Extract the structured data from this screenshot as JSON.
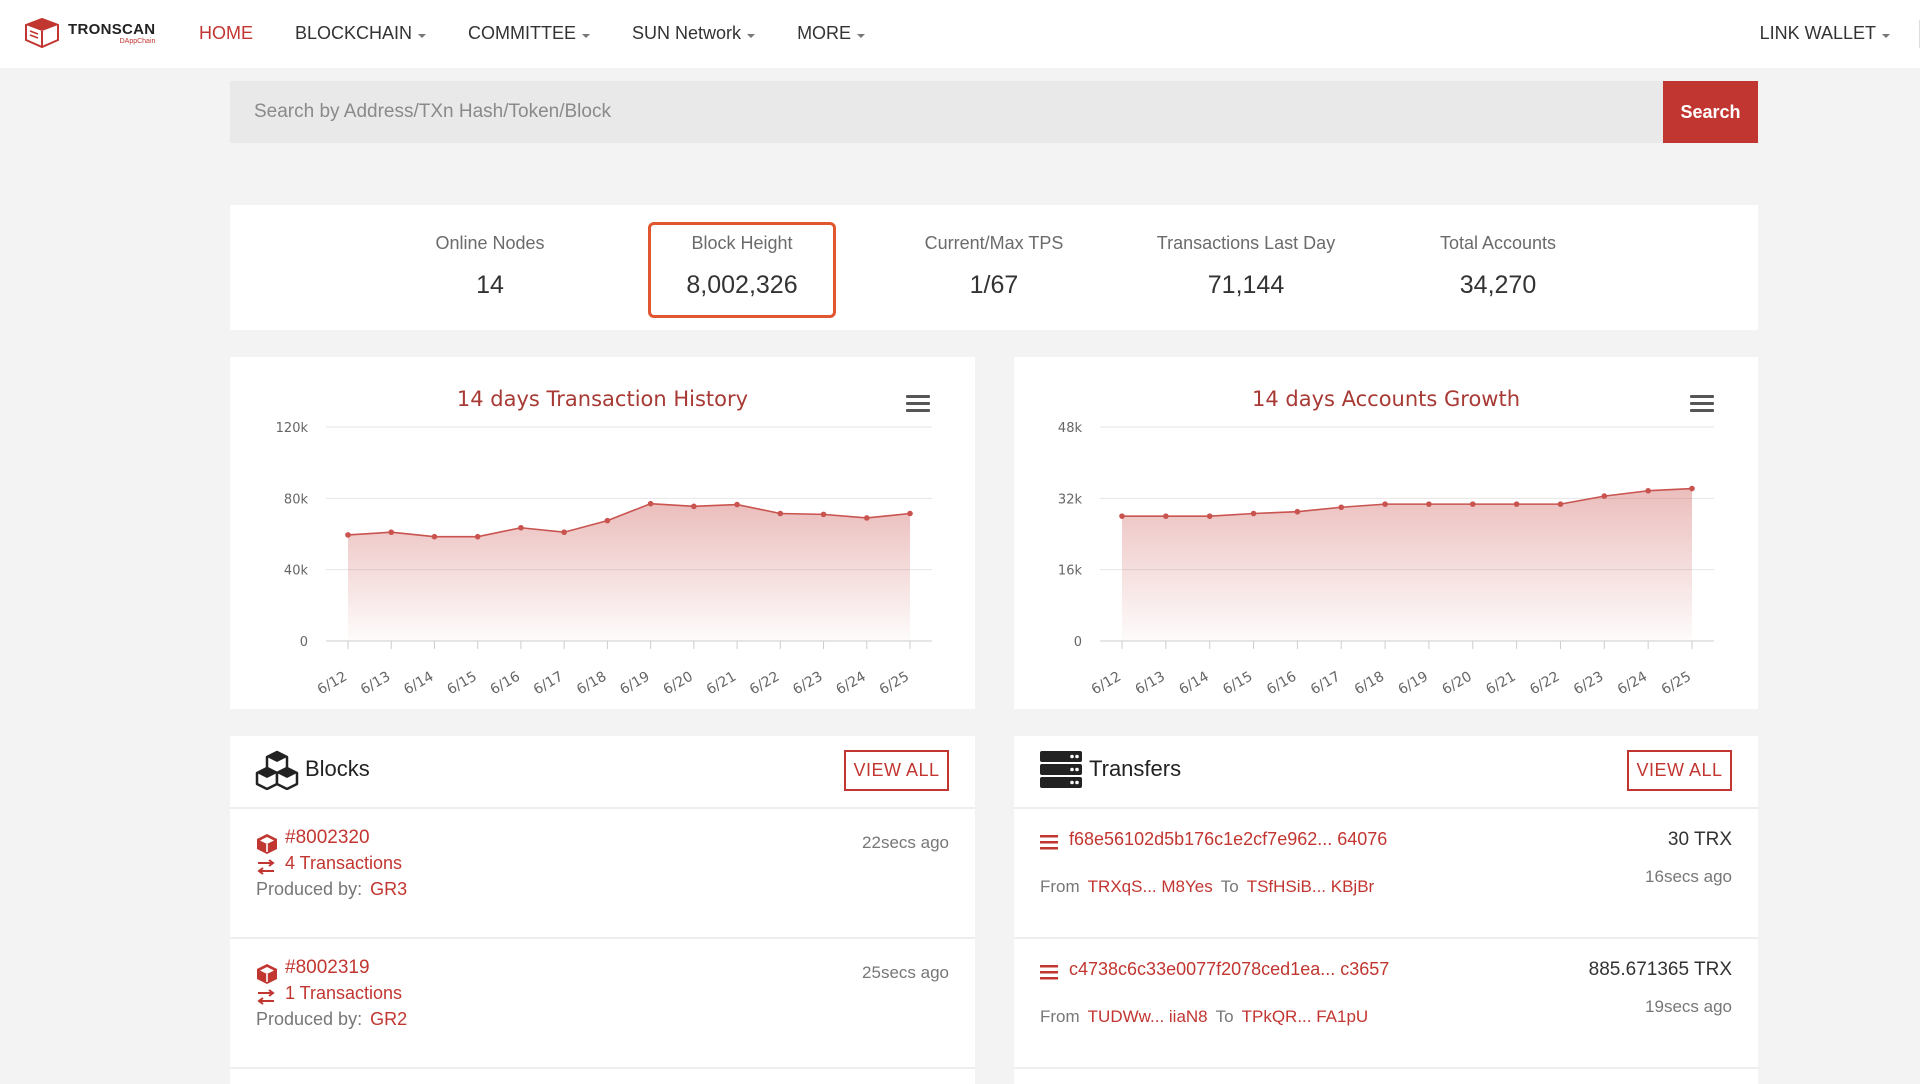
{
  "brand": {
    "name": "TRONSCAN",
    "sub": "DAppChain"
  },
  "nav": {
    "items": [
      {
        "label": "HOME",
        "active": true,
        "dropdown": false
      },
      {
        "label": "BLOCKCHAIN",
        "active": false,
        "dropdown": true
      },
      {
        "label": "COMMITTEE",
        "active": false,
        "dropdown": true
      },
      {
        "label": "SUN Network",
        "active": false,
        "dropdown": true
      },
      {
        "label": "MORE",
        "active": false,
        "dropdown": true
      }
    ],
    "link_wallet": "LINK WALLET"
  },
  "search": {
    "placeholder": "Search by Address/TXn Hash/Token/Block",
    "value": "",
    "button": "Search"
  },
  "stats": [
    {
      "label": "Online Nodes",
      "value": "14"
    },
    {
      "label": "Block Height",
      "value": "8,002,326"
    },
    {
      "label": "Current/Max TPS",
      "value": "1/67"
    },
    {
      "label": "Transactions Last Day",
      "value": "71,144"
    },
    {
      "label": "Total Accounts",
      "value": "34,270"
    }
  ],
  "colors": {
    "accent": "#c23631",
    "highlight_border": "#e0562f",
    "chart_line": "#c9534f"
  },
  "chart_data": [
    {
      "type": "area",
      "title": "14 days Transaction History",
      "xlabel": "",
      "ylabel": "",
      "categories": [
        "6/12",
        "6/13",
        "6/14",
        "6/15",
        "6/16",
        "6/17",
        "6/18",
        "6/19",
        "6/20",
        "6/21",
        "6/22",
        "6/23",
        "6/24",
        "6/25"
      ],
      "values": [
        59500,
        61000,
        58500,
        58500,
        63500,
        61000,
        67500,
        77000,
        75500,
        76500,
        71500,
        71000,
        69000,
        71500
      ],
      "y_ticks": [
        "0",
        "40k",
        "80k",
        "120k"
      ],
      "ylim": [
        0,
        120000
      ],
      "grid": true,
      "legend": "none"
    },
    {
      "type": "area",
      "title": "14 days Accounts Growth",
      "xlabel": "",
      "ylabel": "",
      "categories": [
        "6/12",
        "6/13",
        "6/14",
        "6/15",
        "6/16",
        "6/17",
        "6/18",
        "6/19",
        "6/20",
        "6/21",
        "6/22",
        "6/23",
        "6/24",
        "6/25"
      ],
      "values": [
        28000,
        28000,
        28000,
        28600,
        29000,
        30000,
        30700,
        30700,
        30700,
        30700,
        30700,
        32500,
        33700,
        34200
      ],
      "y_ticks": [
        "0",
        "16k",
        "32k",
        "48k"
      ],
      "ylim": [
        0,
        48000
      ],
      "grid": true,
      "legend": "none"
    }
  ],
  "blocks": {
    "title": "Blocks",
    "view_all": "VIEW ALL",
    "produced_by_label": "Produced by:",
    "rows": [
      {
        "number": "#8002320",
        "transactions": "4 Transactions",
        "producer": "GR3",
        "ago": "22secs ago"
      },
      {
        "number": "#8002319",
        "transactions": "1 Transactions",
        "producer": "GR2",
        "ago": "25secs ago"
      }
    ]
  },
  "transfers": {
    "title": "Transfers",
    "view_all": "VIEW ALL",
    "from_label": "From",
    "to_label": "To",
    "rows": [
      {
        "hash": "f68e56102d5b176c1e2cf7e962... 64076",
        "amount": "30 TRX",
        "from": "TRXqS... M8Yes",
        "to": "TSfHSiB... KBjBr",
        "ago": "16secs ago"
      },
      {
        "hash": "c4738c6c33e0077f2078ced1ea... c3657",
        "amount": "885.671365 TRX",
        "from": "TUDWw... iiaN8",
        "to": "TPkQR... FA1pU",
        "ago": "19secs ago"
      }
    ]
  }
}
